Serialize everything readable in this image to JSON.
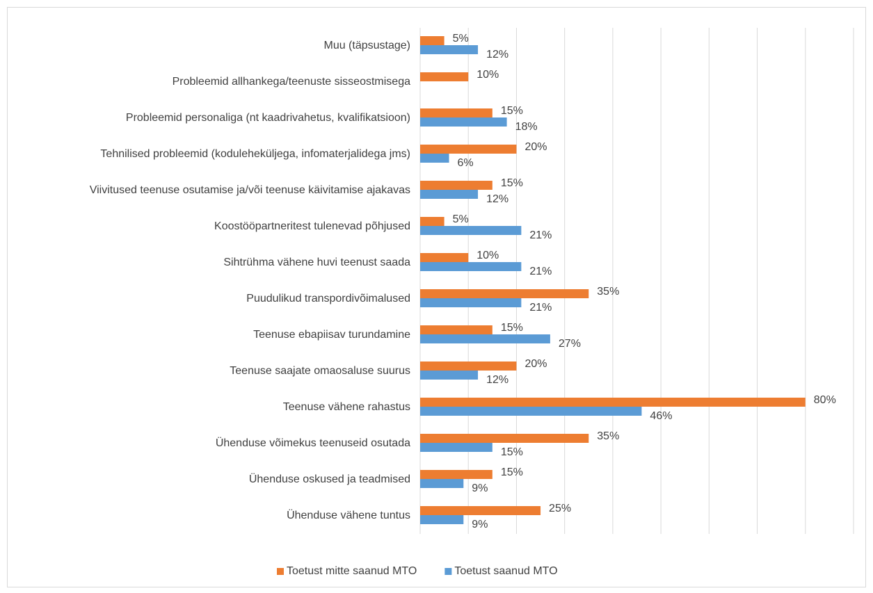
{
  "chart_data": {
    "type": "bar",
    "orientation": "horizontal",
    "categories": [
      "Muu (täpsustage)",
      "Probleemid allhankega/teenuste sisseostmisega",
      "Probleemid personaliga (nt kaadrivahetus, kvalifikatsioon)",
      "Tehnilised probleemid (koduleheküljega, infomaterjalidega jms)",
      "Viivitused teenuse osutamise ja/või teenuse käivitamise ajakavas",
      "Koostööpartneritest tulenevad põhjused",
      "Sihtrühma vähene huvi teenust saada",
      "Puudulikud transpordivõimalused",
      "Teenuse ebapiisav turundamine",
      "Teenuse saajate omaosaluse suurus",
      "Teenuse vähene rahastus",
      "Ühenduse võimekus teenuseid osutada",
      "Ühenduse oskused ja teadmised",
      "Ühenduse vähene tuntus"
    ],
    "series": [
      {
        "name": "Toetust mitte saanud MTO",
        "color": "#ed7d31",
        "values": [
          5,
          10,
          15,
          20,
          15,
          5,
          10,
          35,
          15,
          20,
          80,
          35,
          15,
          25
        ],
        "value_labels": [
          "5%",
          "10%",
          "15%",
          "20%",
          "15%",
          "5%",
          "10%",
          "35%",
          "15%",
          "20%",
          "80%",
          "35%",
          "15%",
          "25%"
        ]
      },
      {
        "name": "Toetust saanud MTO",
        "color": "#5b9bd5",
        "values": [
          12,
          null,
          18,
          6,
          12,
          21,
          21,
          21,
          27,
          12,
          46,
          15,
          9,
          9
        ],
        "value_labels": [
          "12%",
          null,
          "18%",
          "6%",
          "12%",
          "21%",
          "21%",
          "21%",
          "27%",
          "12%",
          "46%",
          "15%",
          "9%",
          "9%"
        ]
      }
    ],
    "xlim": [
      0,
      90
    ],
    "xticks": [
      0,
      10,
      20,
      30,
      40,
      50,
      60,
      70,
      80,
      90
    ],
    "grid": true,
    "legend": "bottom"
  }
}
